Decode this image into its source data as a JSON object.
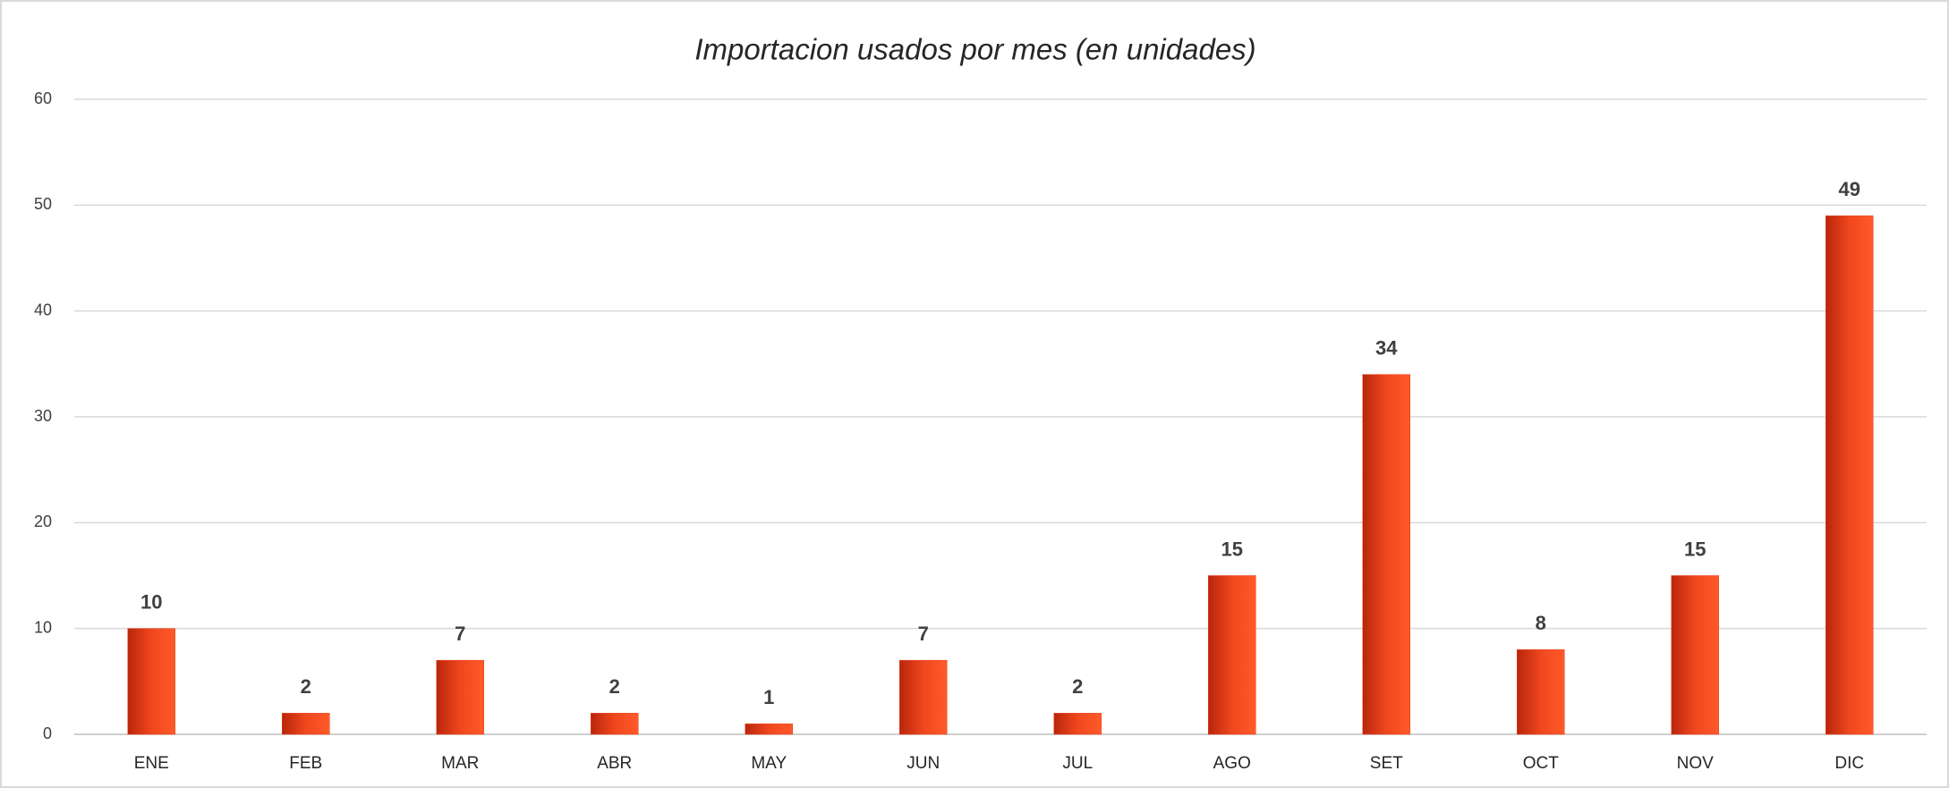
{
  "chart_data": {
    "type": "bar",
    "title": "Importacion usados por mes (en unidades)",
    "categories": [
      "ENE",
      "FEB",
      "MAR",
      "ABR",
      "MAY",
      "JUN",
      "JUL",
      "AGO",
      "SET",
      "OCT",
      "NOV",
      "DIC"
    ],
    "values": [
      10,
      2,
      7,
      2,
      1,
      7,
      2,
      15,
      34,
      8,
      15,
      49
    ],
    "color": "#e8401c",
    "ylim": [
      0,
      60
    ],
    "yticks": [
      0,
      10,
      20,
      30,
      40,
      50,
      60
    ],
    "grid": true
  }
}
